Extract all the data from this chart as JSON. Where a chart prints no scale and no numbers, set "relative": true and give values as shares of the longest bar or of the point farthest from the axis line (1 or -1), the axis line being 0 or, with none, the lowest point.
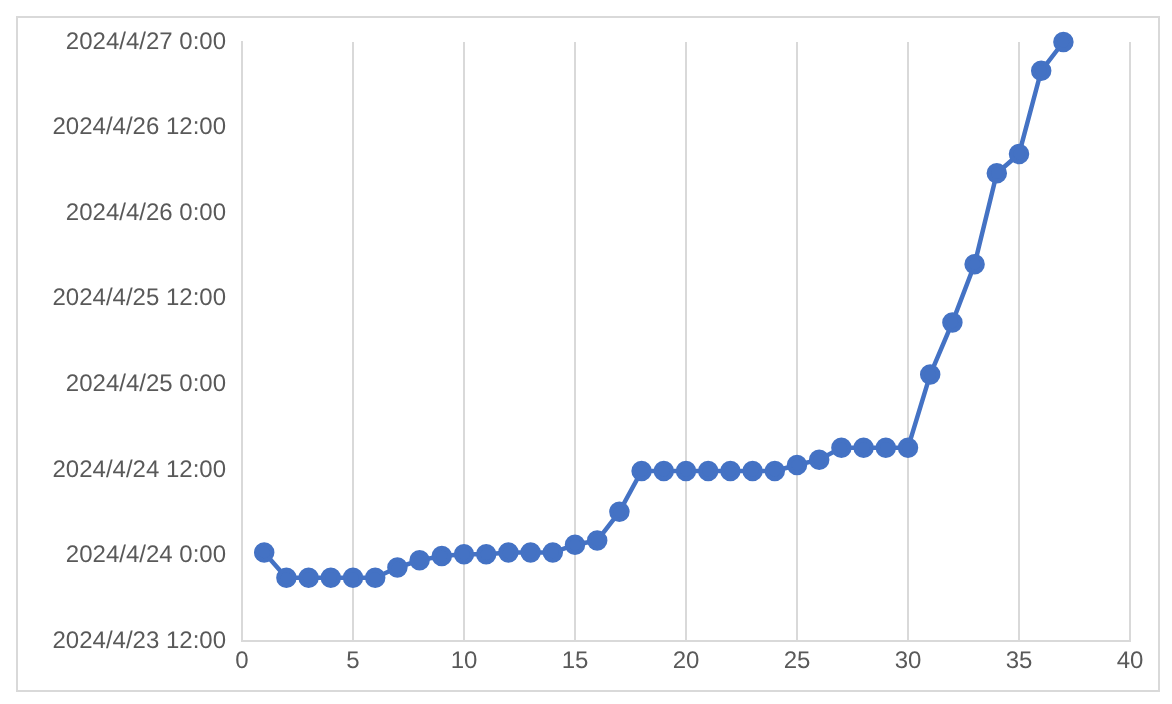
{
  "chart_data": {
    "type": "line",
    "relative": true,
    "x": [
      1,
      2,
      3,
      4,
      5,
      6,
      7,
      8,
      9,
      10,
      11,
      12,
      13,
      14,
      15,
      16,
      17,
      18,
      19,
      20,
      21,
      22,
      23,
      24,
      25,
      26,
      27,
      28,
      29,
      30,
      31,
      32,
      33,
      34,
      35,
      36,
      37
    ],
    "series": [
      {
        "color": "#4472c4",
        "values": [
          0.148,
          0.106,
          0.106,
          0.106,
          0.106,
          0.106,
          0.123,
          0.135,
          0.142,
          0.145,
          0.145,
          0.148,
          0.148,
          0.148,
          0.161,
          0.168,
          0.216,
          0.284,
          0.284,
          0.284,
          0.284,
          0.284,
          0.284,
          0.284,
          0.294,
          0.303,
          0.323,
          0.323,
          0.323,
          0.323,
          0.445,
          0.532,
          0.629,
          0.781,
          0.813,
          0.952,
          1
        ]
      }
    ],
    "xlim": [
      0,
      40
    ],
    "xticks": [
      0,
      5,
      10,
      15,
      20,
      25,
      30,
      35,
      40
    ],
    "annotations": [
      "2024/4/27 0:00",
      "2024/4/26 12:00",
      "2024/4/26 0:00",
      "2024/4/25 12:00",
      "2024/4/25 0:00",
      "2024/4/24 12:00",
      "2024/4/24 0:00",
      "2024/4/23 12:00"
    ],
    "grid": "x",
    "marker": "circle",
    "line_style": "solid",
    "legend": false
  }
}
